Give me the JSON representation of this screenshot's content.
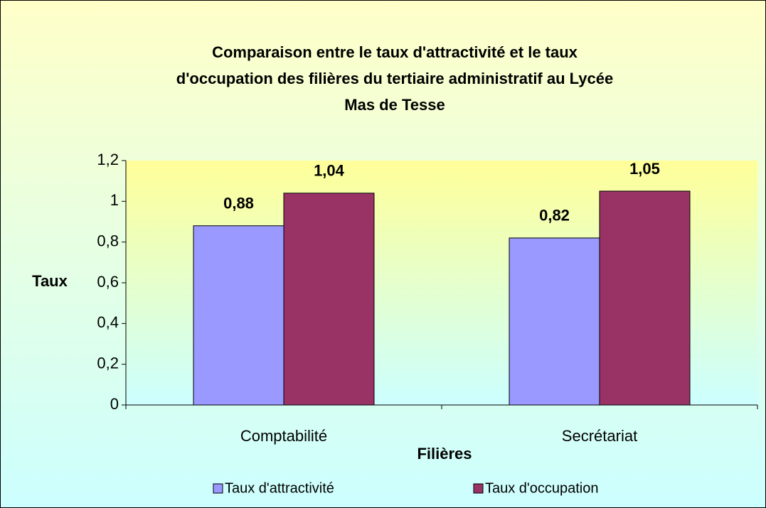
{
  "chart_data": {
    "type": "bar",
    "title": [
      "Comparaison entre le taux d'attractivité et le taux",
      "d'occupation des filières du tertiaire administratif au Lycée",
      "Mas de Tesse"
    ],
    "x_label": "Filières",
    "y_label": "Taux",
    "categories": [
      "Comptabilité",
      "Secrétariat"
    ],
    "series": [
      {
        "name": "Taux d'attractivité",
        "color": "#9999ff",
        "values": [
          0.88,
          0.82
        ],
        "value_labels": [
          "0,88",
          "0,82"
        ]
      },
      {
        "name": "Taux d'occupation",
        "color": "#993366",
        "values": [
          1.04,
          1.05
        ],
        "value_labels": [
          "1,04",
          "1,05"
        ]
      }
    ],
    "ylim": [
      0,
      1.2
    ],
    "yticks": [
      0,
      {
        "value": 0.2,
        "label": "0,2"
      },
      {
        "value": 0.4,
        "label": "0,4"
      },
      {
        "value": 0.6,
        "label": "0,6"
      },
      {
        "value": 0.8,
        "label": "0,8"
      },
      1,
      {
        "value": 1.2,
        "label": "1,2"
      }
    ],
    "grid": false,
    "legend": "bottom"
  }
}
